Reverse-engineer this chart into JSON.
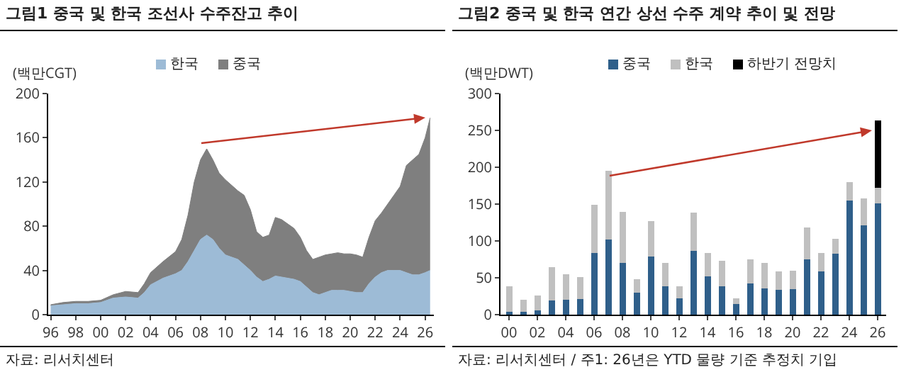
{
  "chart_data": [
    {
      "type": "area",
      "title": "그림1 중국 및 한국 조선사 수주잔고 추이",
      "ylabel": "(백만CGT)",
      "stacked": true,
      "legend": "top",
      "grid": false,
      "x": [
        1996,
        1997,
        1998,
        1999,
        2000,
        2001,
        2002,
        2003,
        2003.5,
        2004,
        2005,
        2006,
        2006.5,
        2007,
        2007.5,
        2008,
        2008.5,
        2009,
        2009.5,
        2010,
        2011,
        2011.5,
        2012,
        2012.5,
        2013,
        2013.5,
        2014,
        2014.5,
        2015,
        2015.5,
        2016,
        2016.5,
        2017,
        2017.5,
        2018,
        2018.5,
        2019,
        2019.5,
        2020,
        2020.5,
        2021,
        2021.5,
        2022,
        2022.5,
        2023,
        2023.5,
        2024,
        2024.5,
        2025,
        2025.5,
        2026,
        2026.4
      ],
      "series": [
        {
          "name": "한국",
          "color": "#9dbbd6",
          "values": [
            8,
            9,
            10,
            10,
            11,
            15,
            16,
            15,
            20,
            27,
            33,
            37,
            40,
            48,
            58,
            68,
            72,
            68,
            60,
            54,
            50,
            45,
            40,
            34,
            30,
            32,
            35,
            34,
            33,
            32,
            30,
            25,
            20,
            18,
            20,
            22,
            22,
            22,
            21,
            20,
            20,
            28,
            34,
            38,
            40,
            40,
            40,
            38,
            36,
            36,
            38,
            40
          ]
        },
        {
          "name": "중국",
          "color": "#7f7f7f",
          "values": [
            1,
            2,
            2,
            2,
            2,
            3,
            5,
            5,
            8,
            11,
            15,
            20,
            28,
            42,
            62,
            72,
            78,
            72,
            68,
            68,
            62,
            63,
            55,
            41,
            40,
            40,
            53,
            52,
            49,
            46,
            40,
            33,
            30,
            34,
            34,
            33,
            34,
            33,
            34,
            34,
            32,
            42,
            51,
            54,
            60,
            68,
            76,
            97,
            104,
            109,
            122,
            138
          ]
        }
      ],
      "xlim": [
        1995.8,
        2026.7
      ],
      "xticks": [
        {
          "value": 1996,
          "label": "96"
        },
        {
          "value": 1998,
          "label": "98"
        },
        {
          "value": 2000,
          "label": "00"
        },
        {
          "value": 2002,
          "label": "02"
        },
        {
          "value": 2004,
          "label": "04"
        },
        {
          "value": 2006,
          "label": "06"
        },
        {
          "value": 2008,
          "label": "08"
        },
        {
          "value": 2010,
          "label": "10"
        },
        {
          "value": 2012,
          "label": "12"
        },
        {
          "value": 2014,
          "label": "14"
        },
        {
          "value": 2016,
          "label": "16"
        },
        {
          "value": 2018,
          "label": "18"
        },
        {
          "value": 2020,
          "label": "20"
        },
        {
          "value": 2022,
          "label": "22"
        },
        {
          "value": 2024,
          "label": "24"
        },
        {
          "value": 2026,
          "label": "26"
        }
      ],
      "ylim": [
        0,
        200
      ],
      "yticks": [
        0,
        40,
        80,
        120,
        160,
        200
      ],
      "annotations": [
        "자료: 리서치센터"
      ]
    },
    {
      "type": "bar",
      "title": "그림2 중국 및 한국 연간 상선 수주 계약 추이 및 전망",
      "ylabel": "(백만DWT)",
      "stacked": true,
      "legend": "top",
      "grid": false,
      "categories": [
        "00",
        null,
        "02",
        null,
        "04",
        null,
        "06",
        null,
        "08",
        null,
        "10",
        null,
        "12",
        null,
        "14",
        null,
        "16",
        null,
        "18",
        null,
        "20",
        null,
        "22",
        null,
        "24",
        null,
        "26"
      ],
      "series": [
        {
          "name": "중국",
          "color": "#2f5f8a",
          "values": [
            4,
            4,
            6,
            19,
            20,
            21,
            84,
            102,
            70,
            30,
            79,
            38,
            22,
            87,
            52,
            38,
            14,
            42,
            36,
            34,
            35,
            75,
            59,
            83,
            155,
            121,
            151
          ]
        },
        {
          "name": "한국",
          "color": "#c0c0c0",
          "values": [
            34,
            16,
            20,
            45,
            35,
            30,
            65,
            93,
            69,
            18,
            48,
            32,
            16,
            51,
            32,
            35,
            8,
            33,
            34,
            25,
            25,
            43,
            25,
            20,
            25,
            37,
            21
          ]
        },
        {
          "name": "하반기 전망치",
          "color": "#000000",
          "values": [
            null,
            null,
            null,
            null,
            null,
            null,
            null,
            null,
            null,
            null,
            null,
            null,
            null,
            null,
            null,
            null,
            null,
            null,
            null,
            null,
            null,
            null,
            null,
            null,
            null,
            null,
            91
          ]
        }
      ],
      "ylim": [
        0,
        300
      ],
      "yticks": [
        0,
        50,
        100,
        150,
        200,
        250,
        300
      ],
      "annotations": [
        "자료: 리서치센터 / 주1: 26년은 YTD 물량 기준 추정치 기입"
      ]
    }
  ]
}
